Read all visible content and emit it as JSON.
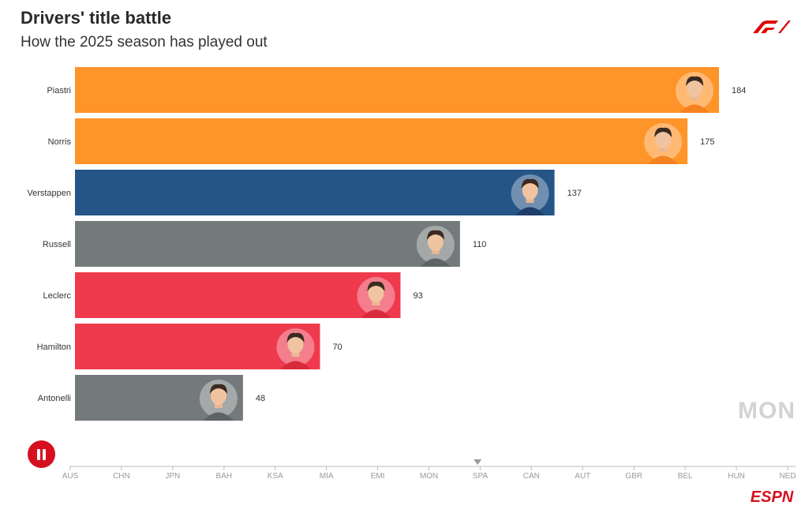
{
  "header": {
    "title": "Drivers' title battle",
    "subtitle": "How the 2025 season has played out"
  },
  "brand": {
    "f1_logo": "f1-logo",
    "espn_logo": "ESPN",
    "accent": "#d6101e"
  },
  "controls": {
    "pause_icon": "pause-icon"
  },
  "current_race": "MON",
  "chart_data": {
    "type": "bar",
    "orientation": "horizontal",
    "title": "Drivers' title battle",
    "subtitle": "How the 2025 season has played out",
    "categories": [
      "Piastri",
      "Norris",
      "Verstappen",
      "Russell",
      "Leclerc",
      "Hamilton",
      "Antonelli"
    ],
    "values": [
      184,
      175,
      137,
      110,
      93,
      70,
      48
    ],
    "colors": [
      "#ff9428",
      "#ff9428",
      "#255587",
      "#747a7c",
      "#ef3a4e",
      "#ef3a4e",
      "#747a7c"
    ],
    "avatar_colors": [
      "#f58220",
      "#f58220",
      "#1e3f6a",
      "#5e6466",
      "#d92a3c",
      "#d92a3c",
      "#5e6466"
    ],
    "xlim": [
      0,
      200
    ],
    "timeline": {
      "races": [
        "AUS",
        "CHN",
        "JPN",
        "BAH",
        "KSA",
        "MIA",
        "EMI",
        "MON",
        "SPA",
        "CAN",
        "AUT",
        "GBR",
        "BEL",
        "HUN",
        "NED"
      ],
      "marker_index": 7.95
    }
  }
}
